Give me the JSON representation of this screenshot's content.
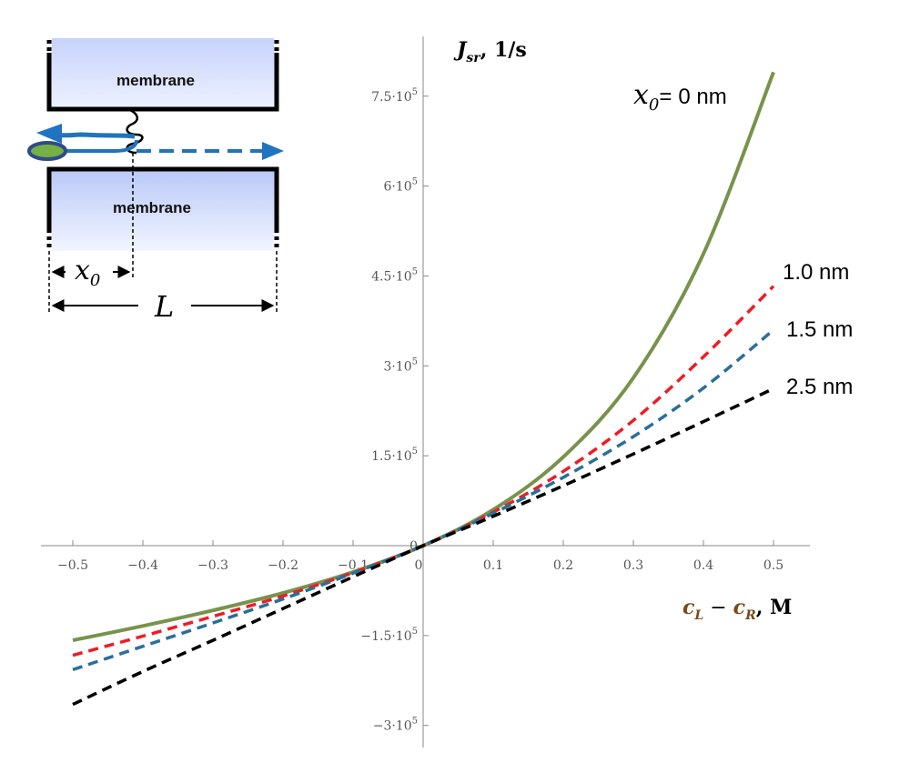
{
  "chart_data": {
    "type": "line",
    "xlabel_parts": {
      "base1": "c",
      "sub1": "L",
      "minus": " − ",
      "base2": "c",
      "sub2": "R",
      "unit": ", M"
    },
    "ylabel_parts": {
      "base": "J",
      "sub": "sr",
      "unit": ", 1/s"
    },
    "xlim": [
      -0.55,
      0.55
    ],
    "ylim": [
      -310000,
      840000
    ],
    "x_ticks": [
      -0.5,
      -0.4,
      -0.3,
      -0.2,
      -0.1,
      0,
      0.1,
      0.2,
      0.3,
      0.4,
      0.5
    ],
    "x_tick_labels": [
      "−0.5",
      "−0.4",
      "−0.3",
      "−0.2",
      "−0.1",
      "0",
      "0.1",
      "0.2",
      "0.3",
      "0.4",
      "0.5"
    ],
    "y_ticks": [
      -300000,
      -150000,
      150000,
      300000,
      450000,
      600000,
      750000
    ],
    "y_tick_labels": [
      {
        "mant": "−3",
        "exp": "5"
      },
      {
        "mant": "−1.5",
        "exp": "5"
      },
      {
        "mant": "1.5",
        "exp": "5"
      },
      {
        "mant": "3",
        "exp": "5"
      },
      {
        "mant": "4.5",
        "exp": "5"
      },
      {
        "mant": "6",
        "exp": "5"
      },
      {
        "mant": "7.5",
        "exp": "5"
      }
    ],
    "tick_base": "·10",
    "zero_label": "0",
    "grid": false,
    "series": [
      {
        "name": "0 nm",
        "color": "#77934b",
        "dash": "solid",
        "x": [
          -0.5,
          -0.4,
          -0.3,
          -0.2,
          -0.1,
          0,
          0.1,
          0.2,
          0.3,
          0.4,
          0.5
        ],
        "y": [
          -158000,
          -134000,
          -108000,
          -79000,
          -44000,
          0,
          60000,
          148000,
          280000,
          487000,
          790000
        ]
      },
      {
        "name": "1.0 nm",
        "color": "#ee1c25",
        "dash": "dashed",
        "x": [
          -0.5,
          -0.4,
          -0.3,
          -0.2,
          -0.1,
          0,
          0.1,
          0.2,
          0.3,
          0.4,
          0.5
        ],
        "y": [
          -183000,
          -151000,
          -118000,
          -84000,
          -45000,
          0,
          56000,
          124000,
          209000,
          315000,
          433000
        ]
      },
      {
        "name": "1.5 nm",
        "color": "#2a6f99",
        "dash": "dashed",
        "x": [
          -0.5,
          -0.4,
          -0.3,
          -0.2,
          -0.1,
          0,
          0.1,
          0.2,
          0.3,
          0.4,
          0.5
        ],
        "y": [
          -207000,
          -168000,
          -129000,
          -89000,
          -46000,
          0,
          54000,
          114000,
          182000,
          263000,
          360000
        ]
      },
      {
        "name": "2.5 nm",
        "color": "#000000",
        "dash": "dashed",
        "x": [
          -0.5,
          -0.4,
          -0.3,
          -0.2,
          -0.1,
          0,
          0.1,
          0.2,
          0.3,
          0.4,
          0.5
        ],
        "y": [
          -265000,
          -210000,
          -158000,
          -105000,
          -52000,
          0,
          49000,
          100000,
          153000,
          207000,
          262000
        ]
      }
    ]
  },
  "series_labels": {
    "first_prefix_base": "x",
    "first_prefix_sub": "0",
    "first_prefix_eq": "=",
    "labels": [
      "0 nm",
      "1.0 nm",
      "1.5 nm",
      "2.5 nm"
    ]
  },
  "inset": {
    "membrane_top": "membrane",
    "membrane_bottom": "membrane",
    "x0_base": "x",
    "x0_sub": "0",
    "length_label": "L",
    "colors": {
      "membrane_fill": "#d4ddfb",
      "arrow_blue": "#1f73c0",
      "ellipse_fill": "#77b043",
      "ellipse_edge": "#2f4b8c"
    }
  }
}
